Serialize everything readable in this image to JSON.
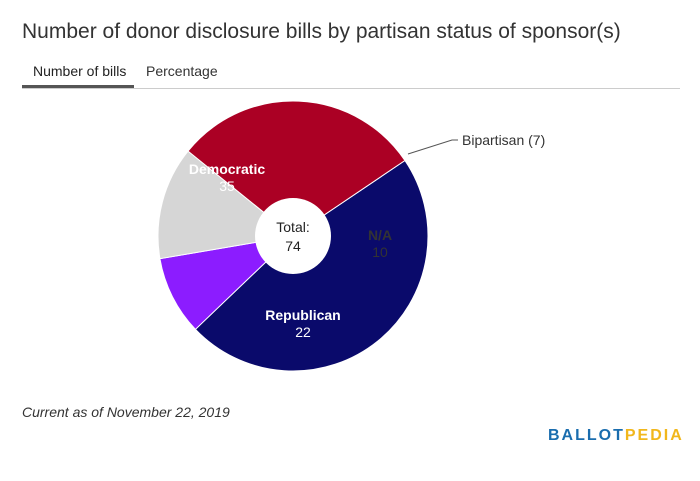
{
  "title": "Number of donor disclosure bills by partisan status of sponsor(s)",
  "tabs": [
    {
      "label": "Number of bills",
      "active": true
    },
    {
      "label": "Percentage",
      "active": false
    }
  ],
  "chart_data": {
    "type": "pie",
    "donut": true,
    "center_label": "Total:",
    "center_value": "74",
    "slices": [
      {
        "name": "Democratic",
        "value": 35,
        "color": "#0a0a6b",
        "label": "Democratic",
        "value_label": "35"
      },
      {
        "name": "Bipartisan",
        "value": 7,
        "color": "#8c1cff",
        "label": "Bipartisan (7)"
      },
      {
        "name": "N/A",
        "value": 10,
        "color": "#d6d6d6",
        "label": "N/A",
        "value_label": "10"
      },
      {
        "name": "Republican",
        "value": 22,
        "color": "#ab0024",
        "label": "Republican",
        "value_label": "22"
      }
    ]
  },
  "footnote": "Current as of November 22, 2019",
  "logo": {
    "part1": "BALLOT",
    "part2": "PEDIA"
  }
}
